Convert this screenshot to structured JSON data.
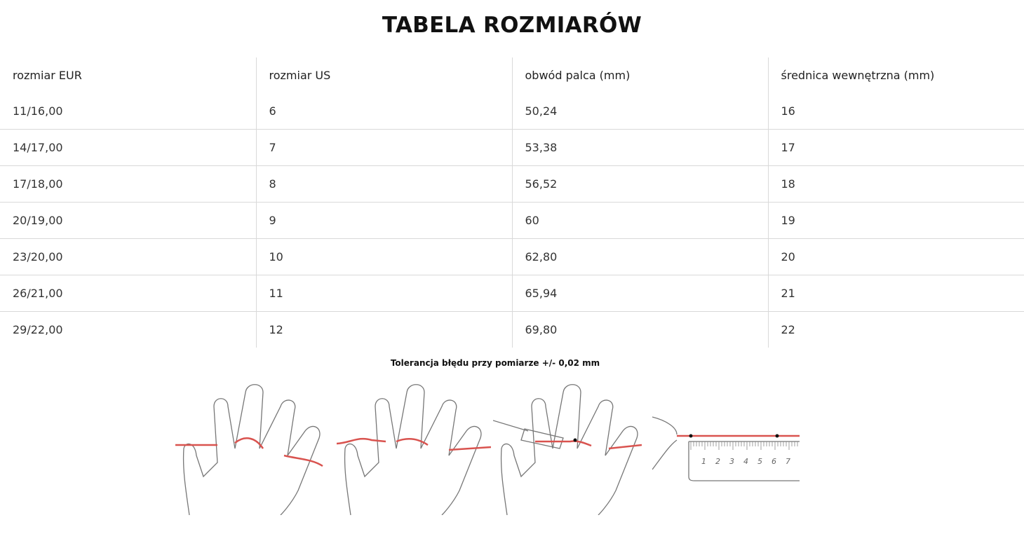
{
  "title": "TABELA ROZMIARÓW",
  "table": {
    "headers": [
      "rozmiar EUR",
      "rozmiar US",
      "obwód palca (mm)",
      "średnica wewnętrzna (mm)"
    ],
    "rows": [
      [
        "11/16,00",
        "6",
        "50,24",
        "16"
      ],
      [
        "14/17,00",
        "7",
        "53,38",
        "17"
      ],
      [
        "17/18,00",
        "8",
        "56,52",
        "18"
      ],
      [
        "20/19,00",
        "9",
        "60",
        "19"
      ],
      [
        "23/20,00",
        "10",
        "62,80",
        "20"
      ],
      [
        "26/21,00",
        "11",
        "65,94",
        "21"
      ],
      [
        "29/22,00",
        "12",
        "69,80",
        "22"
      ]
    ]
  },
  "note": "Tolerancja błędu przy pomiarze +/- 0,02 mm",
  "illustrations": {
    "ruler_labels": [
      "1",
      "2",
      "3",
      "4",
      "5",
      "6",
      "7"
    ],
    "string_color": "#d9534f"
  }
}
